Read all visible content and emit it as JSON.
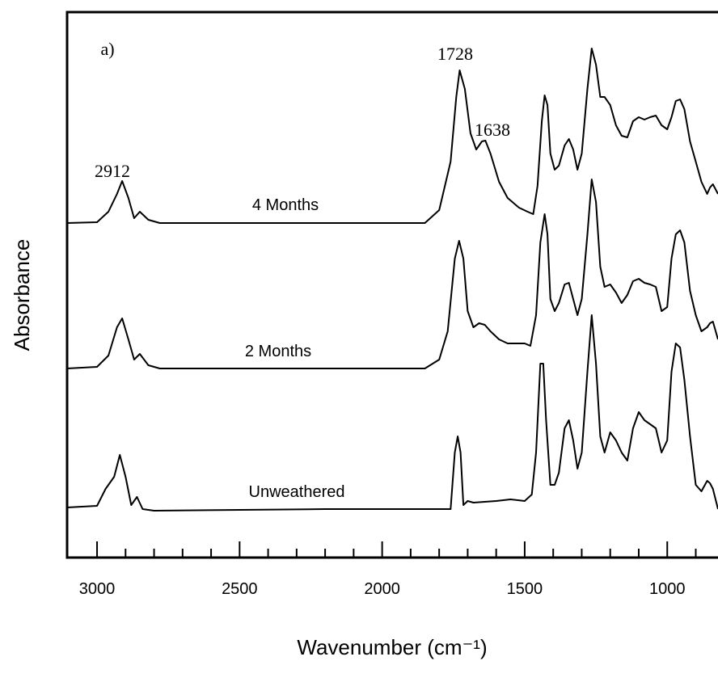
{
  "chart_data": {
    "type": "line",
    "y_label": "Absorbance",
    "x_label": "Wavenumber (cm⁻¹)",
    "annotations": [
      "a)",
      "1728",
      "1638",
      "2912"
    ],
    "xlim": [
      3105,
      822
    ],
    "ylim": [
      0,
      675
    ],
    "xticks": [
      3000,
      2500,
      2000,
      1500,
      1000
    ],
    "xticks_minor": [
      2900,
      2800,
      2700,
      2600,
      2400,
      2300,
      2200,
      2100,
      1900,
      1800,
      1700,
      1600,
      1400,
      1300,
      1200,
      1100,
      900
    ],
    "color": "#000000",
    "series": [
      {
        "name": "4 Months",
        "x": [
          3105,
          3000,
          2960,
          2930,
          2912,
          2890,
          2870,
          2850,
          2820,
          2780,
          1850,
          1800,
          1760,
          1740,
          1728,
          1710,
          1690,
          1670,
          1650,
          1638,
          1620,
          1590,
          1560,
          1520,
          1490,
          1470,
          1455,
          1440,
          1430,
          1420,
          1410,
          1395,
          1380,
          1360,
          1345,
          1330,
          1315,
          1300,
          1280,
          1265,
          1250,
          1235,
          1220,
          1200,
          1180,
          1160,
          1140,
          1120,
          1100,
          1080,
          1060,
          1040,
          1020,
          1000,
          985,
          970,
          955,
          940,
          920,
          900,
          880,
          860,
          850,
          840,
          822
        ],
        "values": [
          414,
          415,
          428,
          450,
          466,
          445,
          420,
          428,
          418,
          414,
          414,
          430,
          490,
          570,
          603,
          580,
          525,
          505,
          515,
          516,
          500,
          465,
          445,
          433,
          428,
          425,
          460,
          540,
          572,
          560,
          500,
          480,
          485,
          510,
          518,
          505,
          480,
          500,
          580,
          630,
          610,
          570,
          570,
          560,
          535,
          522,
          520,
          540,
          545,
          542,
          545,
          547,
          535,
          530,
          545,
          565,
          567,
          555,
          515,
          490,
          465,
          450,
          458,
          462,
          450
        ]
      },
      {
        "name": "2 Months",
        "x": [
          3105,
          3000,
          2960,
          2930,
          2912,
          2890,
          2870,
          2850,
          2820,
          2780,
          1850,
          1800,
          1770,
          1745,
          1730,
          1715,
          1700,
          1680,
          1660,
          1640,
          1620,
          1590,
          1560,
          1530,
          1500,
          1480,
          1460,
          1445,
          1430,
          1420,
          1410,
          1395,
          1380,
          1360,
          1345,
          1330,
          1315,
          1300,
          1280,
          1265,
          1250,
          1235,
          1220,
          1200,
          1180,
          1160,
          1140,
          1120,
          1100,
          1080,
          1060,
          1040,
          1020,
          1000,
          985,
          970,
          955,
          940,
          920,
          900,
          880,
          860,
          850,
          840,
          822
        ],
        "values": [
          234,
          236,
          250,
          285,
          296,
          270,
          245,
          252,
          238,
          234,
          234,
          245,
          280,
          370,
          392,
          370,
          305,
          285,
          290,
          288,
          280,
          270,
          265,
          265,
          265,
          262,
          300,
          390,
          425,
          400,
          320,
          305,
          315,
          338,
          340,
          320,
          300,
          320,
          400,
          468,
          440,
          360,
          335,
          338,
          328,
          315,
          325,
          342,
          345,
          340,
          338,
          335,
          305,
          310,
          370,
          400,
          405,
          390,
          330,
          300,
          280,
          285,
          290,
          292,
          270
        ]
      },
      {
        "name": "Unweathered",
        "x": [
          3105,
          3000,
          2970,
          2940,
          2920,
          2900,
          2880,
          2860,
          2840,
          2800,
          2200,
          1800,
          1760,
          1745,
          1735,
          1725,
          1715,
          1700,
          1680,
          1600,
          1550,
          1500,
          1475,
          1460,
          1445,
          1435,
          1425,
          1410,
          1395,
          1380,
          1360,
          1345,
          1330,
          1315,
          1300,
          1280,
          1265,
          1250,
          1235,
          1220,
          1200,
          1180,
          1160,
          1140,
          1120,
          1100,
          1080,
          1060,
          1040,
          1020,
          1000,
          985,
          970,
          955,
          940,
          920,
          900,
          880,
          860,
          850,
          840,
          822
        ],
        "values": [
          62,
          64,
          85,
          100,
          127,
          100,
          65,
          75,
          60,
          58,
          60,
          60,
          60,
          130,
          150,
          130,
          65,
          70,
          68,
          70,
          72,
          70,
          78,
          130,
          240,
          240,
          170,
          90,
          90,
          105,
          160,
          170,
          145,
          110,
          130,
          230,
          300,
          240,
          150,
          130,
          155,
          145,
          130,
          120,
          160,
          180,
          170,
          165,
          160,
          130,
          145,
          230,
          265,
          260,
          220,
          150,
          90,
          82,
          95,
          92,
          85,
          60
        ]
      }
    ]
  }
}
